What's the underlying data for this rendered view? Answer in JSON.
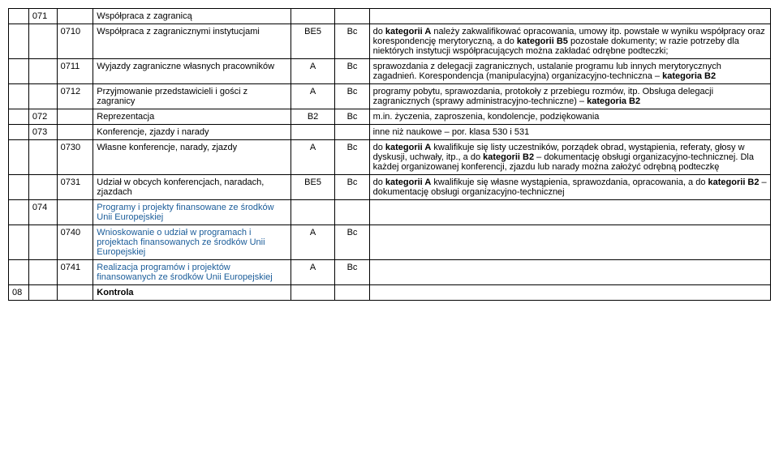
{
  "rows": [
    {
      "c1": "",
      "c2": "071",
      "c3": "",
      "c4": "Współpraca z zagranicą",
      "c5": "",
      "c6": "",
      "c7": ""
    },
    {
      "c1": "",
      "c2": "",
      "c3": "0710",
      "c4": "Współpraca z zagranicznymi instytucjami",
      "c5": "BE5",
      "c6": "Bc",
      "c7": "do <b>kategorii A</b> należy zakwalifikować opracowania, umowy itp. powstałe w wyniku współpracy oraz korespondencję merytoryczną, a do <b>kategorii B5</b> pozostałe dokumenty; w razie potrzeby dla niektórych instytucji współpracujących można zakładać odrębne podteczki;"
    },
    {
      "c1": "",
      "c2": "",
      "c3": "0711",
      "c4": "Wyjazdy zagraniczne własnych pracowników",
      "c5": "A",
      "c6": "Bc",
      "c7": "sprawozdania z delegacji zagranicznych, ustalanie programu lub innych merytorycznych zagadnień. Korespondencja (manipulacyjna) organizacyjno-techniczna – <b>kategoria B2</b>"
    },
    {
      "c1": "",
      "c2": "",
      "c3": "0712",
      "c4": "Przyjmowanie przedstawicieli i gości z zagranicy",
      "c5": "A",
      "c6": "Bc",
      "c7": "programy pobytu, sprawozdania, protokoły z przebiegu rozmów, itp. Obsługa delegacji zagranicznych (sprawy administracyjno-techniczne) – <b>kategoria B2</b>"
    },
    {
      "c1": "",
      "c2": "072",
      "c3": "",
      "c4": "Reprezentacja",
      "c5": "B2",
      "c6": "Bc",
      "c7": "m.in. życzenia, zaproszenia, kondolencje, podziękowania"
    },
    {
      "c1": "",
      "c2": "073",
      "c3": "",
      "c4": "Konferencje, zjazdy i narady",
      "c5": "",
      "c6": "",
      "c7": "inne niż naukowe – por. klasa 530 i 531"
    },
    {
      "c1": "",
      "c2": "",
      "c3": "0730",
      "c4": "Własne konferencje, narady, zjazdy",
      "c5": "A",
      "c6": "Bc",
      "c7": "do <b>kategorii A</b> kwalifikuje się listy uczestników, porządek obrad, wystąpienia, referaty, głosy w dyskusji, uchwały, itp., a do <b>kategorii B2</b> – dokumentację obsługi organizacyjno-technicznej. Dla każdej organizowanej konferencji, zjazdu lub narady można założyć odrębną podteczkę"
    },
    {
      "c1": "",
      "c2": "",
      "c3": "0731",
      "c4": "Udział w obcych konferencjach, naradach, zjazdach",
      "c5": "BE5",
      "c6": "Bc",
      "c7": "do <b>kategorii A</b> kwalifikuje się własne wystąpienia, sprawozdania, opracowania, a do <b>kategorii B2</b> – dokumentację obsługi organizacyjno-technicznej"
    },
    {
      "c1": "",
      "c2": "074",
      "c3": "",
      "c4": "<span style='color:#1a5c99'>Programy i projekty finansowane ze środków Unii Europejskiej</span>",
      "c5": "",
      "c6": "",
      "c7": ""
    },
    {
      "c1": "",
      "c2": "",
      "c3": "0740",
      "c4": "<span style='color:#1a5c99'>Wnioskowanie o udział w programach i projektach finansowanych ze środków Unii Europejskiej</span>",
      "c5": "A",
      "c6": "Bc",
      "c7": ""
    },
    {
      "c1": "",
      "c2": "",
      "c3": "0741",
      "c4": "<span style='color:#1a5c99'>Realizacja programów i projektów finansowanych ze środków Unii Europejskiej</span>",
      "c5": "A",
      "c6": "Bc",
      "c7": ""
    },
    {
      "c1": "08",
      "c2": "",
      "c3": "",
      "c4": "<b>Kontrola</b>",
      "c5": "",
      "c6": "",
      "c7": ""
    }
  ],
  "style": {
    "background": "#ffffff",
    "border_color": "#000000",
    "font_size": 11,
    "link_color": "#1a5c99"
  }
}
